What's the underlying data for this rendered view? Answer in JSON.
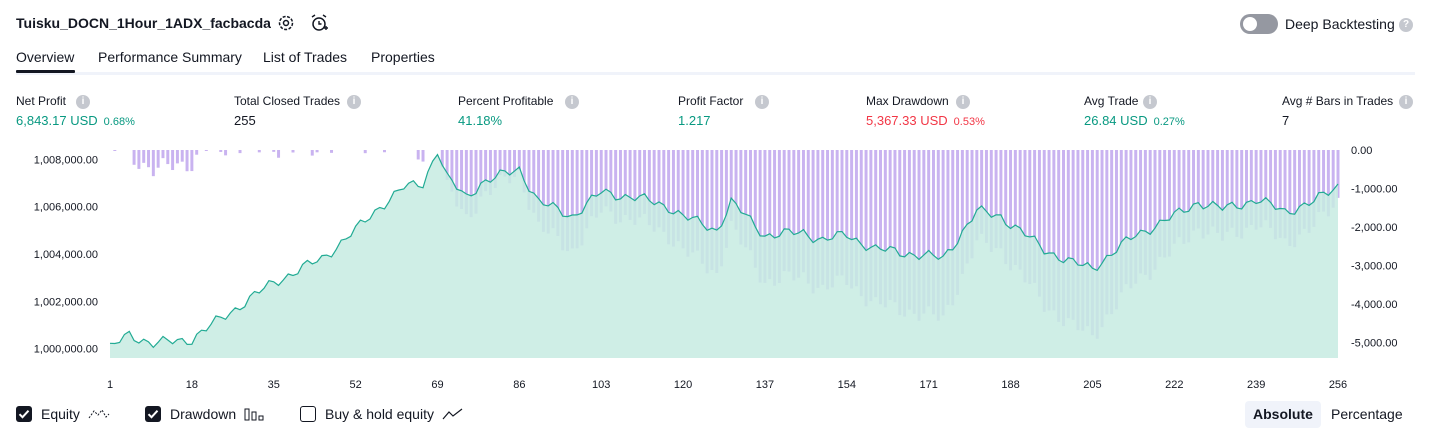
{
  "header": {
    "strategy_title": "Tuisku_DOCN_1Hour_1ADX_facbacda",
    "deep_backtesting_label": "Deep Backtesting",
    "deep_backtesting_enabled": false,
    "help_glyph": "?"
  },
  "tabs": [
    {
      "label": "Overview",
      "active": true
    },
    {
      "label": "Performance Summary",
      "active": false
    },
    {
      "label": "List of Trades",
      "active": false
    },
    {
      "label": "Properties",
      "active": false
    }
  ],
  "stats": {
    "net_profit": {
      "label": "Net Profit",
      "value": "6,843.17 USD",
      "pct": "0.68%"
    },
    "total_closed_trades": {
      "label": "Total Closed Trades",
      "value": "255"
    },
    "percent_profitable": {
      "label": "Percent Profitable",
      "value": "41.18%"
    },
    "profit_factor": {
      "label": "Profit Factor",
      "value": "1.217"
    },
    "max_drawdown": {
      "label": "Max Drawdown",
      "value": "5,367.33 USD",
      "pct": "0.53%"
    },
    "avg_trade": {
      "label": "Avg Trade",
      "value": "26.84 USD",
      "pct": "0.27%"
    },
    "avg_bars": {
      "label": "Avg # Bars in Trades",
      "value": "7"
    }
  },
  "chart_data": {
    "type": "area",
    "left_axis": {
      "ticks": [
        "1,008,000.00",
        "1,006,000.00",
        "1,004,000.00",
        "1,002,000.00",
        "1,000,000.00"
      ],
      "range": [
        999600,
        1008400
      ]
    },
    "right_axis": {
      "ticks": [
        "0.00",
        "-1,000.00",
        "-2,000.00",
        "-3,000.00",
        "-4,000.00",
        "-5,000.00"
      ],
      "range": [
        -5400,
        0
      ]
    },
    "x_ticks": [
      "1",
      "18",
      "35",
      "52",
      "69",
      "86",
      "103",
      "120",
      "137",
      "154",
      "171",
      "188",
      "205",
      "222",
      "239",
      "256"
    ],
    "trade_count": 256,
    "equity_keypoints": [
      [
        1,
        1000000
      ],
      [
        5,
        1000600
      ],
      [
        10,
        1000200
      ],
      [
        18,
        1000400
      ],
      [
        25,
        1001400
      ],
      [
        35,
        1002800
      ],
      [
        45,
        1003800
      ],
      [
        52,
        1005000
      ],
      [
        57,
        1006000
      ],
      [
        62,
        1006800
      ],
      [
        66,
        1007000
      ],
      [
        69,
        1008400
      ],
      [
        71,
        1007200
      ],
      [
        75,
        1006400
      ],
      [
        78,
        1007000
      ],
      [
        86,
        1007600
      ],
      [
        90,
        1006200
      ],
      [
        97,
        1005600
      ],
      [
        103,
        1006600
      ],
      [
        110,
        1006400
      ],
      [
        117,
        1006000
      ],
      [
        120,
        1005600
      ],
      [
        127,
        1005000
      ],
      [
        130,
        1006200
      ],
      [
        137,
        1004800
      ],
      [
        145,
        1004900
      ],
      [
        149,
        1004600
      ],
      [
        154,
        1004800
      ],
      [
        160,
        1004200
      ],
      [
        168,
        1004000
      ],
      [
        174,
        1003800
      ],
      [
        181,
        1005800
      ],
      [
        186,
        1005600
      ],
      [
        195,
        1004200
      ],
      [
        201,
        1003600
      ],
      [
        205,
        1003400
      ],
      [
        214,
        1004800
      ],
      [
        222,
        1005600
      ],
      [
        227,
        1006200
      ],
      [
        232,
        1005900
      ],
      [
        239,
        1006300
      ],
      [
        245,
        1005800
      ],
      [
        251,
        1006200
      ],
      [
        256,
        1006900
      ]
    ],
    "equity_color": "#22ab94",
    "equity_fill": "#c7ebe2",
    "drawdown_color": "#c9b3f0",
    "max_drawdown_value": -5367.33
  },
  "legend": {
    "equity": {
      "label": "Equity",
      "checked": true
    },
    "drawdown": {
      "label": "Drawdown",
      "checked": true
    },
    "buy_hold": {
      "label": "Buy & hold equity",
      "checked": false
    }
  },
  "scale_mode": {
    "absolute_label": "Absolute",
    "percentage_label": "Percentage",
    "selected": "Absolute"
  }
}
